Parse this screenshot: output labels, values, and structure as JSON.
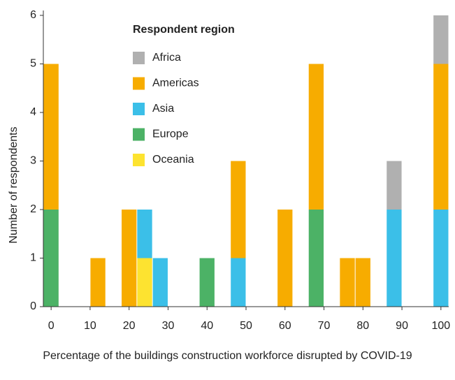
{
  "chart_data": {
    "type": "histogram",
    "xlabel": "Percentage of the buildings construction workforce disrupted by COVID-19",
    "ylabel": "Number of respondents",
    "legend_title": "Respondent region",
    "legend": "upper left",
    "bins": [
      -2,
      2,
      6,
      10,
      14,
      18,
      22,
      26,
      30,
      34,
      38,
      42,
      46,
      50,
      54,
      58,
      62,
      66,
      70,
      74,
      78,
      82,
      86,
      90,
      94,
      98,
      102
    ],
    "stack_order": [
      "Oceania",
      "Europe",
      "Asia",
      "Americas",
      "Africa"
    ],
    "series": [
      {
        "name": "Africa",
        "color": "#b0b0b0",
        "values": [
          0,
          0,
          0,
          0,
          0,
          0,
          0,
          0,
          0,
          0,
          0,
          0,
          0,
          0,
          0,
          0,
          0,
          0,
          0,
          0,
          0,
          0,
          1,
          0,
          0,
          1
        ]
      },
      {
        "name": "Americas",
        "color": "#f7ac00",
        "values": [
          3,
          0,
          0,
          1,
          0,
          2,
          0,
          0,
          0,
          0,
          0,
          0,
          2,
          0,
          0,
          2,
          0,
          3,
          0,
          1,
          1,
          0,
          0,
          0,
          0,
          3
        ]
      },
      {
        "name": "Asia",
        "color": "#3bbfe8",
        "values": [
          0,
          0,
          0,
          0,
          0,
          0,
          1,
          1,
          0,
          0,
          0,
          0,
          1,
          0,
          0,
          0,
          0,
          0,
          0,
          0,
          0,
          0,
          2,
          0,
          0,
          2
        ]
      },
      {
        "name": "Europe",
        "color": "#4cb266",
        "values": [
          2,
          0,
          0,
          0,
          0,
          0,
          0,
          0,
          0,
          0,
          1,
          0,
          0,
          0,
          0,
          0,
          0,
          2,
          0,
          0,
          0,
          0,
          0,
          0,
          0,
          0
        ]
      },
      {
        "name": "Oceania",
        "color": "#fde330",
        "values": [
          0,
          0,
          0,
          0,
          0,
          0,
          1,
          0,
          0,
          0,
          0,
          0,
          0,
          0,
          0,
          0,
          0,
          0,
          0,
          0,
          0,
          0,
          0,
          0,
          0,
          0
        ]
      }
    ],
    "xlim": [
      -2,
      102
    ],
    "xticks": [
      0,
      10,
      20,
      30,
      40,
      50,
      60,
      70,
      80,
      90,
      100
    ],
    "ylim": [
      0,
      6
    ],
    "yticks": [
      0,
      1,
      2,
      3,
      4,
      5,
      6
    ],
    "grid": false
  }
}
